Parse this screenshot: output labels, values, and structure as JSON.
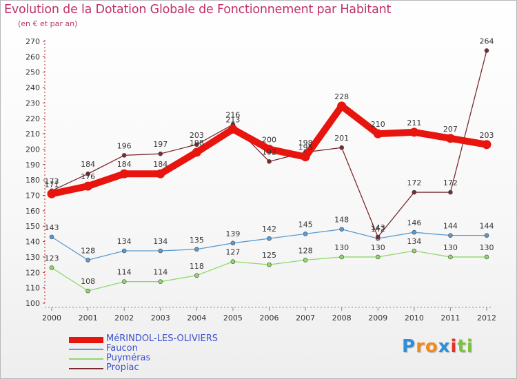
{
  "title": "Evolution de la Dotation Globale de Fonctionnement par Habitant",
  "subtitle": "(en € et par an)",
  "logo": {
    "text": "Proxiti",
    "letters": [
      "P",
      "r",
      "o",
      "x",
      "i",
      "t",
      "i"
    ],
    "colors": [
      "#2e8fd8",
      "#f08a1c",
      "#f08a1c",
      "#2e8fd8",
      "#e0342a",
      "#7cc242",
      "#7cc242"
    ]
  },
  "chart_data": {
    "type": "line",
    "title": "Evolution de la Dotation Globale de Fonctionnement par Habitant",
    "subtitle": "(en € et par an)",
    "xlabel": "",
    "ylabel": "",
    "ylim": [
      100,
      270
    ],
    "yticks": [
      100,
      110,
      120,
      130,
      140,
      150,
      160,
      170,
      180,
      190,
      200,
      210,
      220,
      230,
      240,
      250,
      260,
      270
    ],
    "categories": [
      "2000",
      "2001",
      "2002",
      "2003",
      "2004",
      "2005",
      "2006",
      "2007",
      "2008",
      "2009",
      "2010",
      "2011",
      "2012"
    ],
    "grid": false,
    "legend_position": "bottom-left",
    "series": [
      {
        "name": "MéRINDOL-LES-OLIVIERS",
        "color": "#e8140e",
        "emphasis": true,
        "values": [
          171,
          176,
          184,
          184,
          198,
          213,
          200,
          195,
          228,
          210,
          211,
          207,
          203
        ],
        "labels": [
          "171",
          "176",
          "184",
          "184",
          "198",
          "213",
          "200",
          "195",
          "228",
          "210",
          "211",
          "207",
          "203"
        ]
      },
      {
        "name": "Faucon",
        "color": "#5a9bd4",
        "values": [
          143,
          128,
          134,
          134,
          135,
          139,
          142,
          145,
          148,
          142,
          146,
          144,
          144
        ],
        "labels": [
          "143",
          "128",
          "134",
          "134",
          "135",
          "139",
          "142",
          "145",
          "148",
          "142",
          "146",
          "144",
          "144"
        ]
      },
      {
        "name": "Puyméras",
        "color": "#90d86a",
        "values": [
          123,
          108,
          114,
          114,
          118,
          127,
          125,
          128,
          130,
          130,
          134,
          130,
          130
        ],
        "labels": [
          "123",
          "108",
          "114",
          "114",
          "118",
          "127",
          "125",
          "128",
          "130",
          "130",
          "134",
          "130",
          "130"
        ]
      },
      {
        "name": "Propiac",
        "color": "#7a2a30",
        "values": [
          173,
          184,
          196,
          197,
          203,
          216,
          192,
          198,
          201,
          143,
          172,
          172,
          264
        ],
        "labels": [
          "173",
          "184",
          "196",
          "197",
          "203",
          "216",
          "192",
          "198",
          "201",
          "143",
          "172",
          "172",
          "264"
        ]
      }
    ]
  }
}
